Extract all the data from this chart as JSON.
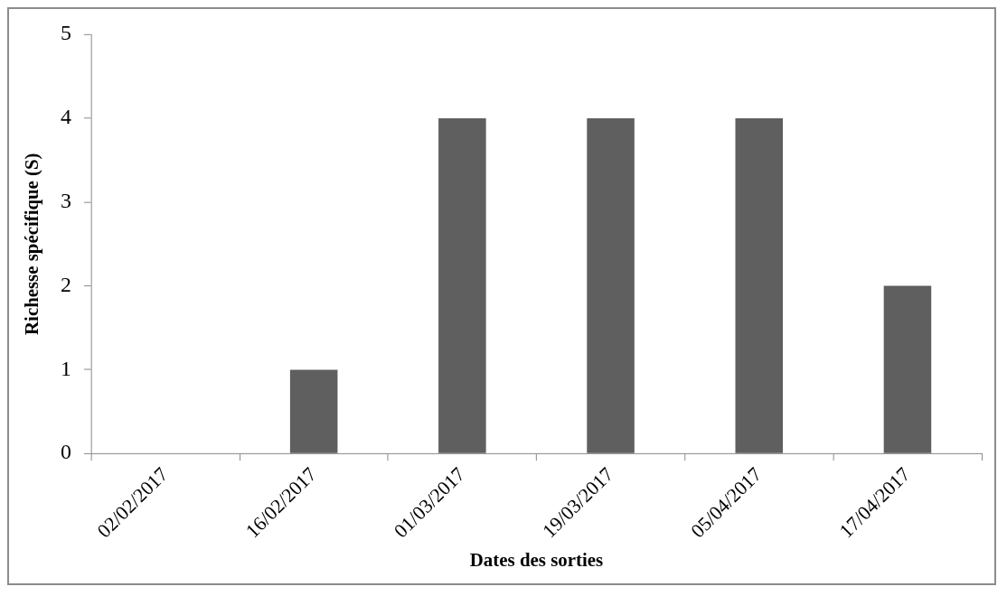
{
  "chart_data": {
    "type": "bar",
    "xlabel": "Dates des sorties",
    "ylabel": "Richesse spécifique (S)",
    "categories": [
      "02/02/2017",
      "16/02/2017",
      "01/03/2017",
      "19/03/2017",
      "05/04/2017",
      "17/04/2017"
    ],
    "values": [
      0,
      1,
      4,
      4,
      4,
      2
    ],
    "color": "#5f5f5f",
    "ylim": [
      0,
      5
    ],
    "yticks": [
      0,
      1,
      2,
      3,
      4,
      5
    ],
    "grid": false,
    "legend": false
  }
}
